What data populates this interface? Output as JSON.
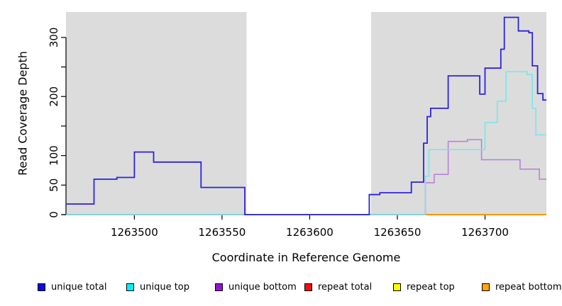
{
  "figure": {
    "kind": "read-coverage-step-plot",
    "plot_background": "#FFFFFF",
    "band_color": "#DCDCDC",
    "axis_color": "#000000"
  },
  "legend": {
    "items": [
      {
        "label": "unique total",
        "color": "#0B0BDC"
      },
      {
        "label": "unique top",
        "color": "#00EEFF"
      },
      {
        "label": "unique bottom",
        "color": "#9413D2"
      },
      {
        "label": "repeat total",
        "color": "#EE0F0F"
      },
      {
        "label": "repeat top",
        "color": "#FFFF00"
      },
      {
        "label": "repeat bottom",
        "color": "#FFA513"
      }
    ]
  },
  "chart_data": {
    "type": "line",
    "subtype": "step-after coverage profile",
    "title": "",
    "xlabel": "Coordinate in Reference Genome",
    "ylabel": "Read Coverage Depth",
    "xlim": [
      1263461,
      1263735
    ],
    "ylim": [
      0,
      343
    ],
    "x_ticks": [
      1263500,
      1263550,
      1263600,
      1263650,
      1263700
    ],
    "y_ticks": [
      0,
      50,
      100,
      150,
      200,
      250,
      300
    ],
    "y_tick_labels": [
      0,
      50,
      100,
      200,
      300
    ],
    "grid": false,
    "legend_position": "bottom",
    "background_bands": [
      {
        "range": [
          1263461,
          1263564
        ],
        "color": "#DCDCDC"
      },
      {
        "range": [
          1263635,
          1263735
        ],
        "color": "#DCDCDC"
      }
    ],
    "masked_gap_range": [
      1263564,
      1263635
    ],
    "zero_overlap_line": {
      "color": "#7CC87C",
      "range": [
        1263461,
        1263666
      ]
    },
    "series": [
      {
        "name": "unique total",
        "color": "#2E22DA",
        "width": 1.8,
        "points": [
          [
            1263461,
            18
          ],
          [
            1263477,
            60
          ],
          [
            1263490,
            63
          ],
          [
            1263500,
            106
          ],
          [
            1263511,
            89
          ],
          [
            1263538,
            46
          ],
          [
            1263563,
            0
          ],
          [
            1263634,
            34
          ],
          [
            1263640,
            37
          ],
          [
            1263658,
            55
          ],
          [
            1263665,
            121
          ],
          [
            1263667,
            166
          ],
          [
            1263669,
            180
          ],
          [
            1263679,
            235
          ],
          [
            1263697,
            204
          ],
          [
            1263700,
            248
          ],
          [
            1263709,
            280
          ],
          [
            1263711,
            334
          ],
          [
            1263719,
            311
          ],
          [
            1263725,
            308
          ],
          [
            1263727,
            252
          ],
          [
            1263730,
            205
          ],
          [
            1263733,
            194
          ],
          [
            1263735,
            194
          ]
        ]
      },
      {
        "name": "unique top",
        "color": "#74E6EA",
        "width": 1.5,
        "points": [
          [
            1263461,
            0
          ],
          [
            1263666,
            65
          ],
          [
            1263668,
            110
          ],
          [
            1263700,
            156
          ],
          [
            1263707,
            192
          ],
          [
            1263712,
            242
          ],
          [
            1263724,
            237
          ],
          [
            1263727,
            180
          ],
          [
            1263729,
            135
          ],
          [
            1263735,
            135
          ]
        ]
      },
      {
        "name": "unique bottom",
        "color": "#B87BDA",
        "width": 1.5,
        "points": [
          [
            1263461,
            0
          ],
          [
            1263666,
            54
          ],
          [
            1263671,
            68
          ],
          [
            1263679,
            124
          ],
          [
            1263690,
            127
          ],
          [
            1263698,
            93
          ],
          [
            1263720,
            77
          ],
          [
            1263731,
            60
          ],
          [
            1263735,
            60
          ]
        ]
      },
      {
        "name": "repeat total",
        "color": "#E81010",
        "width": 1.4,
        "points": [
          [
            1263461,
            0
          ],
          [
            1263735,
            0
          ]
        ]
      },
      {
        "name": "repeat top",
        "color": "#FFFF00",
        "width": 1.4,
        "points": [
          [
            1263461,
            0
          ],
          [
            1263735,
            0
          ]
        ]
      },
      {
        "name": "repeat bottom",
        "color": "#FF8A00",
        "width": 1.6,
        "points": [
          [
            1263461,
            0
          ],
          [
            1263735,
            0
          ]
        ]
      }
    ]
  }
}
